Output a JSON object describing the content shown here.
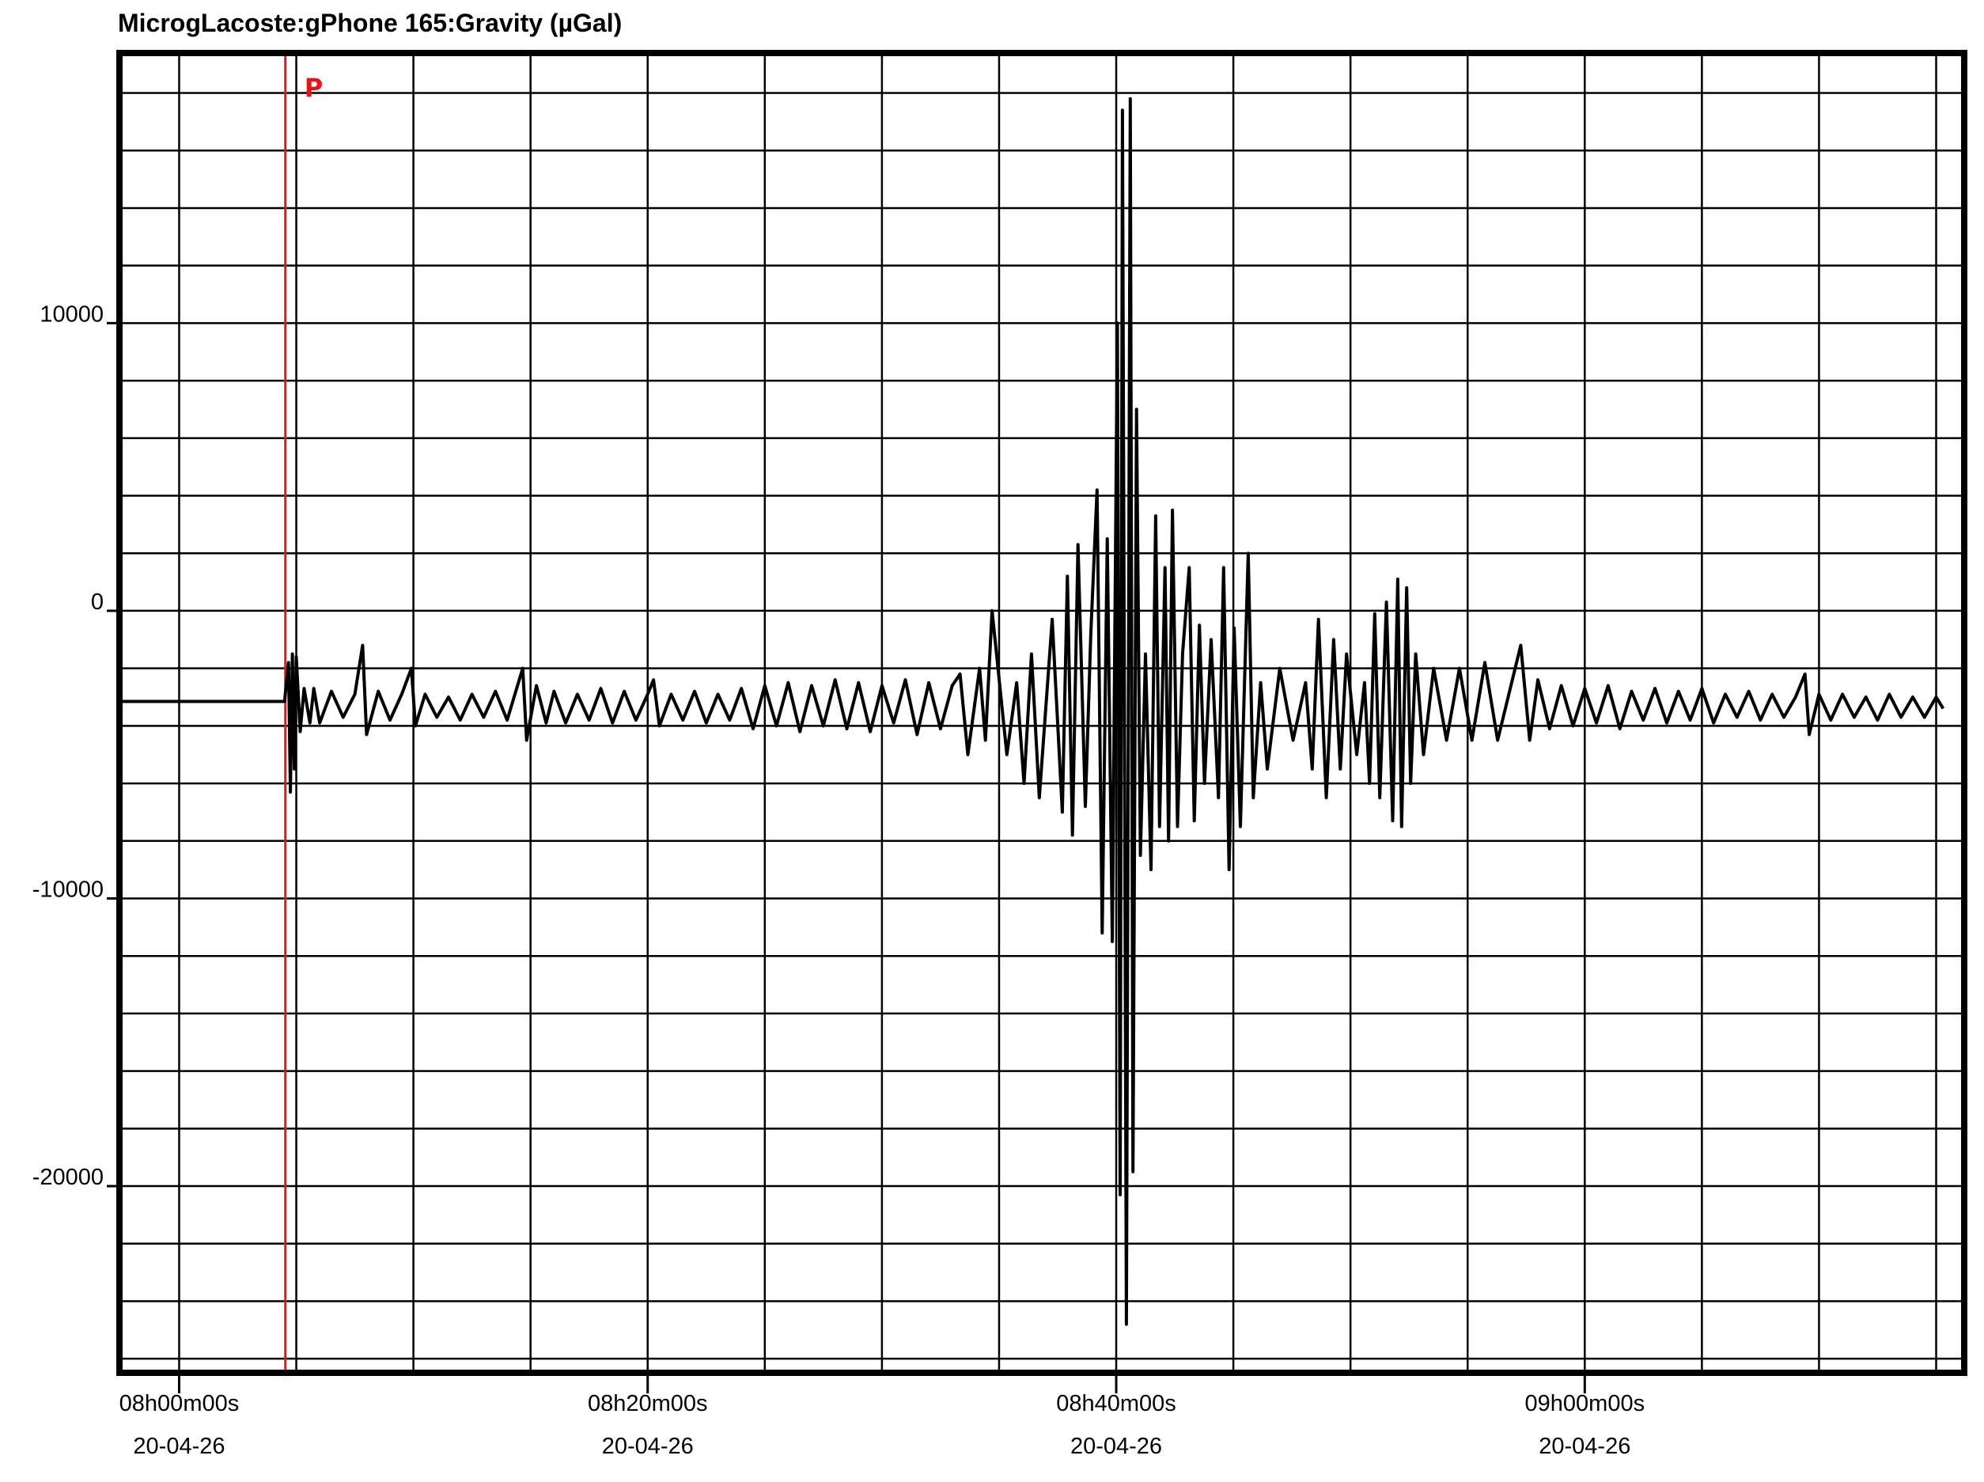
{
  "chart_data": {
    "type": "line",
    "title": "MicrogLacoste:gPhone 165:Gravity (µGal)",
    "xlabel": "",
    "ylabel": "",
    "xlim": [
      "07:57:19",
      "09:16:20"
    ],
    "ylim": [
      -26600,
      19500
    ],
    "grid": true,
    "x_grid_step_minutes": 5,
    "y_grid_step": 2000,
    "y_ticks": [
      {
        "value": 10000,
        "label": "10000"
      },
      {
        "value": 0,
        "label": "0"
      },
      {
        "value": -10000,
        "label": "-10000"
      },
      {
        "value": -20000,
        "label": "-20000"
      }
    ],
    "x_ticks": [
      {
        "time": "08:00:00",
        "label": "08h00m00s",
        "date": "20-04-26"
      },
      {
        "time": "08:20:00",
        "label": "08h20m00s",
        "date": "20-04-26"
      },
      {
        "time": "08:40:00",
        "label": "08h40m00s",
        "date": "20-04-26"
      },
      {
        "time": "09:00:00",
        "label": "09h00m00s",
        "date": "20-04-26"
      }
    ],
    "markers": [
      {
        "label": "P",
        "time": "08:04:32",
        "color": "#e8141c"
      }
    ],
    "series_color": "#000000",
    "points": [
      [
        "07:57:20",
        -3150
      ],
      [
        "08:04:30",
        -3150
      ],
      [
        "08:04:40",
        -1800
      ],
      [
        "08:04:45",
        -6300
      ],
      [
        "08:04:50",
        -1500
      ],
      [
        "08:04:55",
        -5500
      ],
      [
        "08:05:00",
        -1600
      ],
      [
        "08:05:10",
        -4200
      ],
      [
        "08:05:20",
        -2700
      ],
      [
        "08:05:35",
        -3900
      ],
      [
        "08:05:45",
        -2700
      ],
      [
        "08:06:00",
        -3900
      ],
      [
        "08:06:30",
        -2800
      ],
      [
        "08:07:00",
        -3700
      ],
      [
        "08:07:30",
        -2900
      ],
      [
        "08:07:50",
        -1200
      ],
      [
        "08:08:00",
        -4300
      ],
      [
        "08:08:30",
        -2800
      ],
      [
        "08:09:00",
        -3800
      ],
      [
        "08:09:30",
        -2900
      ],
      [
        "08:09:55",
        -2000
      ],
      [
        "08:10:05",
        -4000
      ],
      [
        "08:10:30",
        -2900
      ],
      [
        "08:11:00",
        -3700
      ],
      [
        "08:11:30",
        -3000
      ],
      [
        "08:12:00",
        -3800
      ],
      [
        "08:12:30",
        -2900
      ],
      [
        "08:13:00",
        -3700
      ],
      [
        "08:13:30",
        -2800
      ],
      [
        "08:14:00",
        -3800
      ],
      [
        "08:14:40",
        -2000
      ],
      [
        "08:14:50",
        -4500
      ],
      [
        "08:15:15",
        -2600
      ],
      [
        "08:15:40",
        -3900
      ],
      [
        "08:16:00",
        -2800
      ],
      [
        "08:16:30",
        -3900
      ],
      [
        "08:17:00",
        -2900
      ],
      [
        "08:17:30",
        -3800
      ],
      [
        "08:18:00",
        -2700
      ],
      [
        "08:18:30",
        -3900
      ],
      [
        "08:19:00",
        -2800
      ],
      [
        "08:19:30",
        -3800
      ],
      [
        "08:20:00",
        -2900
      ],
      [
        "08:20:15",
        -2400
      ],
      [
        "08:20:30",
        -4000
      ],
      [
        "08:21:00",
        -2900
      ],
      [
        "08:21:30",
        -3800
      ],
      [
        "08:22:00",
        -2800
      ],
      [
        "08:22:30",
        -3900
      ],
      [
        "08:23:00",
        -2900
      ],
      [
        "08:23:30",
        -3800
      ],
      [
        "08:24:00",
        -2700
      ],
      [
        "08:24:30",
        -4100
      ],
      [
        "08:25:00",
        -2600
      ],
      [
        "08:25:30",
        -4000
      ],
      [
        "08:26:00",
        -2500
      ],
      [
        "08:26:30",
        -4200
      ],
      [
        "08:27:00",
        -2600
      ],
      [
        "08:27:30",
        -4000
      ],
      [
        "08:28:00",
        -2400
      ],
      [
        "08:28:30",
        -4100
      ],
      [
        "08:29:00",
        -2500
      ],
      [
        "08:29:30",
        -4200
      ],
      [
        "08:30:00",
        -2600
      ],
      [
        "08:30:30",
        -3900
      ],
      [
        "08:31:00",
        -2400
      ],
      [
        "08:31:30",
        -4300
      ],
      [
        "08:32:00",
        -2500
      ],
      [
        "08:32:30",
        -4100
      ],
      [
        "08:33:00",
        -2600
      ],
      [
        "08:33:20",
        -2200
      ],
      [
        "08:33:40",
        -5000
      ],
      [
        "08:34:10",
        -2000
      ],
      [
        "08:34:25",
        -4500
      ],
      [
        "08:34:42",
        0
      ],
      [
        "08:35:20",
        -5000
      ],
      [
        "08:35:45",
        -2500
      ],
      [
        "08:36:04",
        -6000
      ],
      [
        "08:36:23",
        -1500
      ],
      [
        "08:36:43",
        -6500
      ],
      [
        "08:37:16",
        -300
      ],
      [
        "08:37:42",
        -7000
      ],
      [
        "08:37:55",
        1200
      ],
      [
        "08:38:08",
        -7800
      ],
      [
        "08:38:22",
        2300
      ],
      [
        "08:38:41",
        -6800
      ],
      [
        "08:38:55",
        -800
      ],
      [
        "08:39:11",
        4200
      ],
      [
        "08:39:24",
        -11200
      ],
      [
        "08:39:37",
        2500
      ],
      [
        "08:39:50",
        -11500
      ],
      [
        "08:40:03",
        10000
      ],
      [
        "08:40:10",
        -20300
      ],
      [
        "08:40:16",
        17400
      ],
      [
        "08:40:26",
        -24800
      ],
      [
        "08:40:36",
        17800
      ],
      [
        "08:40:43",
        -19500
      ],
      [
        "08:40:52",
        7000
      ],
      [
        "08:41:02",
        -8500
      ],
      [
        "08:41:15",
        -1500
      ],
      [
        "08:41:29",
        -9000
      ],
      [
        "08:41:41",
        3300
      ],
      [
        "08:41:51",
        -7500
      ],
      [
        "08:42:05",
        1500
      ],
      [
        "08:42:14",
        -8000
      ],
      [
        "08:42:24",
        3500
      ],
      [
        "08:42:37",
        -7500
      ],
      [
        "08:42:50",
        -1500
      ],
      [
        "08:43:07",
        1500
      ],
      [
        "08:43:20",
        -7300
      ],
      [
        "08:43:33",
        -500
      ],
      [
        "08:43:46",
        -6000
      ],
      [
        "08:44:03",
        -1000
      ],
      [
        "08:44:22",
        -6500
      ],
      [
        "08:44:35",
        1500
      ],
      [
        "08:44:49",
        -9000
      ],
      [
        "08:45:02",
        -600
      ],
      [
        "08:45:18",
        -7500
      ],
      [
        "08:45:38",
        2000
      ],
      [
        "08:45:51",
        -6500
      ],
      [
        "08:46:10",
        -2500
      ],
      [
        "08:46:27",
        -5500
      ],
      [
        "08:46:59",
        -2000
      ],
      [
        "08:47:33",
        -4500
      ],
      [
        "08:48:05",
        -2500
      ],
      [
        "08:48:22",
        -5500
      ],
      [
        "08:48:38",
        -300
      ],
      [
        "08:48:58",
        -6500
      ],
      [
        "08:49:17",
        -1000
      ],
      [
        "08:49:34",
        -5500
      ],
      [
        "08:49:50",
        -1500
      ],
      [
        "08:50:16",
        -5000
      ],
      [
        "08:50:36",
        -2500
      ],
      [
        "08:50:49",
        -6000
      ],
      [
        "08:51:02",
        -100
      ],
      [
        "08:51:15",
        -6500
      ],
      [
        "08:51:32",
        300
      ],
      [
        "08:51:48",
        -7300
      ],
      [
        "08:52:01",
        1100
      ],
      [
        "08:52:11",
        -7500
      ],
      [
        "08:52:24",
        800
      ],
      [
        "08:52:34",
        -6000
      ],
      [
        "08:52:47",
        -1500
      ],
      [
        "08:53:07",
        -5000
      ],
      [
        "08:53:33",
        -2000
      ],
      [
        "08:54:06",
        -4500
      ],
      [
        "08:54:39",
        -2000
      ],
      [
        "08:55:11",
        -4500
      ],
      [
        "08:55:44",
        -1800
      ],
      [
        "08:56:17",
        -4500
      ],
      [
        "08:57:16",
        -1200
      ],
      [
        "08:57:39",
        -4500
      ],
      [
        "08:58:00",
        -2400
      ],
      [
        "08:58:30",
        -4100
      ],
      [
        "08:59:00",
        -2600
      ],
      [
        "08:59:30",
        -4000
      ],
      [
        "09:00:00",
        -2700
      ],
      [
        "09:00:30",
        -3900
      ],
      [
        "09:01:00",
        -2600
      ],
      [
        "09:01:30",
        -4100
      ],
      [
        "09:02:00",
        -2800
      ],
      [
        "09:02:30",
        -3800
      ],
      [
        "09:03:00",
        -2700
      ],
      [
        "09:03:30",
        -3900
      ],
      [
        "09:04:00",
        -2800
      ],
      [
        "09:04:30",
        -3800
      ],
      [
        "09:05:00",
        -2700
      ],
      [
        "09:05:30",
        -3900
      ],
      [
        "09:06:00",
        -2900
      ],
      [
        "09:06:30",
        -3700
      ],
      [
        "09:07:00",
        -2800
      ],
      [
        "09:07:30",
        -3800
      ],
      [
        "09:08:00",
        -2900
      ],
      [
        "09:08:30",
        -3700
      ],
      [
        "09:09:00",
        -3000
      ],
      [
        "09:09:24",
        -2200
      ],
      [
        "09:09:35",
        -4300
      ],
      [
        "09:10:00",
        -2900
      ],
      [
        "09:10:30",
        -3800
      ],
      [
        "09:11:00",
        -2900
      ],
      [
        "09:11:30",
        -3700
      ],
      [
        "09:12:00",
        -3000
      ],
      [
        "09:12:30",
        -3800
      ],
      [
        "09:13:00",
        -2900
      ],
      [
        "09:13:30",
        -3700
      ],
      [
        "09:14:00",
        -3000
      ],
      [
        "09:14:30",
        -3700
      ],
      [
        "09:15:00",
        -3000
      ],
      [
        "09:15:18",
        -3400
      ]
    ]
  }
}
